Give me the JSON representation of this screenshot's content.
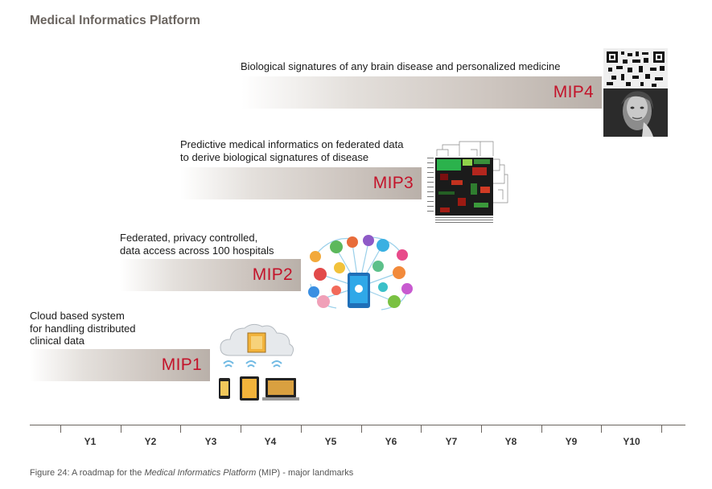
{
  "title": "Medical Informatics Platform",
  "milestones": [
    {
      "id": "MIP1",
      "label": "MIP1",
      "lines": [
        "Cloud based system",
        "for handling distributed",
        "clinical data"
      ]
    },
    {
      "id": "MIP2",
      "label": "MIP2",
      "lines": [
        "Federated, privacy controlled,",
        "data access across 100 hospitals"
      ]
    },
    {
      "id": "MIP3",
      "label": "MIP3",
      "lines": [
        "Predictive medical informatics on federated data",
        "to derive biological signatures of disease"
      ]
    },
    {
      "id": "MIP4",
      "label": "MIP4",
      "lines": [
        "Biological signatures of any brain disease and personalized medicine"
      ]
    }
  ],
  "axis": {
    "years": [
      "Y1",
      "Y2",
      "Y3",
      "Y4",
      "Y5",
      "Y6",
      "Y7",
      "Y8",
      "Y9",
      "Y10"
    ]
  },
  "caption": {
    "prefix": "Figure 24: A roadmap for the ",
    "italic": "Medical Informatics Platform",
    "suffix": " (MIP) - major landmarks"
  },
  "colors": {
    "accent_red": "#c3132a",
    "title_gray": "#6b6560",
    "band_dark": "#b9b0a9"
  },
  "icons": [
    "cloud-devices-illustration",
    "network-icons-illustration",
    "heatmap-illustration",
    "portrait-qr-illustration"
  ]
}
